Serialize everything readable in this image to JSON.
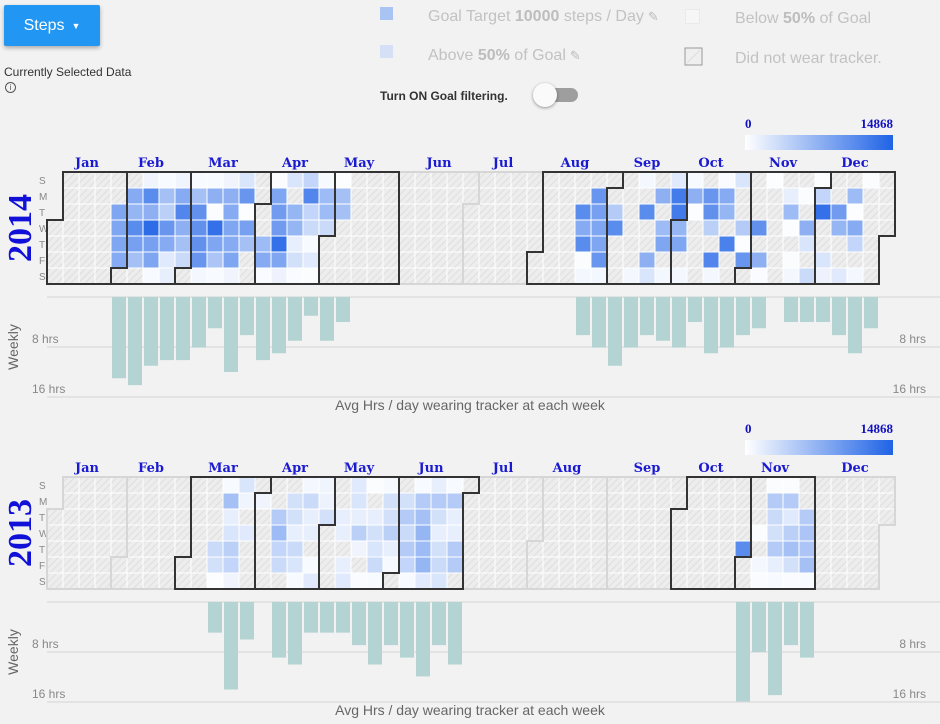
{
  "header": {
    "metric_button": "Steps",
    "selected_label": "Currently Selected Data",
    "legend": {
      "goal_prefix": "Goal Target ",
      "goal_value": "10000",
      "goal_suffix": " steps / Day",
      "above_prefix": "Above ",
      "above_value": "50%",
      "above_suffix": " of Goal",
      "below_prefix": "Below ",
      "below_value": "50%",
      "below_suffix": " of Goal",
      "not_worn": "Did not wear tracker."
    },
    "toggle_label": "Turn ON Goal filtering.",
    "toggle_on": false
  },
  "colors": {
    "goal": "#a9c4f2",
    "above": "#d5e0f7",
    "below": "#f7f7f7",
    "scale_low": "#ffffff",
    "scale_high": "#1f63e6",
    "bars": "#b3d4d2",
    "button": "#2196f3"
  },
  "months": [
    "Jan",
    "Feb",
    "Mar",
    "Apr",
    "May",
    "Jun",
    "Jul",
    "Aug",
    "Sep",
    "Oct",
    "Nov",
    "Dec"
  ],
  "days": [
    "S",
    "M",
    "T",
    "W",
    "T",
    "F",
    "S"
  ],
  "chart_data": [
    {
      "type": "heatmap",
      "year": "2014",
      "scale_min": "0",
      "scale_max": "14868",
      "weekly_label": "Weekly",
      "tick_labels": [
        "8 hrs",
        "16 hrs"
      ],
      "xlabel": "Avg Hrs / day wearing tracker at each week",
      "hours_ylim": [
        0,
        16
      ],
      "daily_steps_by_week": [
        {
          "week_start": "2014-01-26",
          "steps": [
            null,
            null,
            8500,
            8500,
            8500,
            8000,
            null
          ]
        },
        {
          "week_start": "2014-02-02",
          "steps": [
            null,
            8000,
            7000,
            11000,
            9000,
            6000,
            null
          ]
        },
        {
          "week_start": "2014-02-09",
          "steps": [
            1000,
            11000,
            7500,
            14000,
            9000,
            8500,
            500
          ]
        },
        {
          "week_start": "2014-02-16",
          "steps": [
            500,
            6000,
            4500,
            10000,
            8000,
            2000,
            1500
          ]
        },
        {
          "week_start": "2014-02-23",
          "steps": [
            1000,
            8000,
            11500,
            7500,
            6000,
            3500,
            null
          ]
        },
        {
          "week_start": "2014-03-02",
          "steps": [
            500,
            6000,
            10500,
            10500,
            10500,
            10000,
            800
          ]
        },
        {
          "week_start": "2014-03-09",
          "steps": [
            500,
            7500,
            300,
            13500,
            8500,
            5500,
            500
          ]
        },
        {
          "week_start": "2014-03-16",
          "steps": [
            1000,
            7500,
            8000,
            8500,
            8000,
            8500,
            1000
          ]
        },
        {
          "week_start": "2014-03-23",
          "steps": [
            2500,
            10000,
            200,
            9000,
            6000,
            null,
            null
          ]
        },
        {
          "week_start": "2014-03-30",
          "steps": [
            null,
            null,
            null,
            null,
            6500,
            8000,
            400
          ]
        },
        {
          "week_start": "2014-04-06",
          "steps": [
            300,
            8500,
            9500,
            9500,
            13500,
            8500,
            1200
          ]
        },
        {
          "week_start": "2014-04-13",
          "steps": [
            2500,
            null,
            7000,
            7000,
            1500,
            3000,
            400
          ]
        },
        {
          "week_start": "2014-04-20",
          "steps": [
            4000,
            11500,
            4000,
            3500,
            500,
            2000,
            300
          ]
        },
        {
          "week_start": "2014-04-27",
          "steps": [
            600,
            6500,
            6500,
            3500,
            null,
            null,
            null
          ]
        },
        {
          "week_start": "2014-05-04",
          "steps": [
            200,
            6000,
            6000,
            null,
            null,
            null,
            null
          ]
        },
        {
          "week_start": "2014-08-17",
          "steps": [
            null,
            null,
            11000,
            8000,
            11000,
            300,
            800
          ]
        },
        {
          "week_start": "2014-08-24",
          "steps": [
            null,
            10000,
            9000,
            8500,
            8500,
            10000,
            800
          ]
        },
        {
          "week_start": "2014-08-31",
          "steps": [
            null,
            null,
            5000,
            11000,
            null,
            null,
            null
          ]
        },
        {
          "week_start": "2014-09-07",
          "steps": [
            null,
            null,
            null,
            null,
            null,
            null,
            800
          ]
        },
        {
          "week_start": "2014-09-14",
          "steps": [
            800,
            null,
            11000,
            null,
            null,
            7500,
            2500
          ]
        },
        {
          "week_start": "2014-09-21",
          "steps": [
            null,
            7500,
            null,
            6500,
            8500,
            null,
            800
          ]
        },
        {
          "week_start": "2014-09-28",
          "steps": [
            2000,
            12500,
            12500,
            7000,
            8500,
            null,
            800
          ]
        },
        {
          "week_start": "2014-10-05",
          "steps": [
            500,
            7500,
            200,
            null,
            null,
            null,
            null
          ]
        },
        {
          "week_start": "2014-10-12",
          "steps": [
            null,
            10000,
            10500,
            4500,
            null,
            11500,
            800
          ]
        },
        {
          "week_start": "2014-10-19",
          "steps": [
            400,
            8000,
            7000,
            null,
            12000,
            null,
            null
          ]
        },
        {
          "week_start": "2014-10-26",
          "steps": [
            2500,
            null,
            null,
            5000,
            200,
            10000,
            null
          ]
        },
        {
          "week_start": "2014-11-02",
          "steps": [
            null,
            null,
            null,
            10500,
            null,
            7500,
            400
          ]
        },
        {
          "week_start": "2014-11-09",
          "steps": [
            200,
            null,
            null,
            null,
            null,
            null,
            null
          ]
        },
        {
          "week_start": "2014-11-16",
          "steps": [
            null,
            1500,
            6500,
            200,
            null,
            300,
            800
          ]
        },
        {
          "week_start": "2014-11-23",
          "steps": [
            null,
            300,
            null,
            7500,
            2500,
            null,
            3500
          ]
        },
        {
          "week_start": "2014-11-30",
          "steps": [
            200,
            4000,
            13500,
            null,
            null,
            2500,
            1200
          ]
        },
        {
          "week_start": "2014-12-07",
          "steps": [
            null,
            null,
            9500,
            7000,
            null,
            null,
            2000
          ]
        },
        {
          "week_start": "2014-12-14",
          "steps": [
            null,
            6500,
            200,
            8000,
            4000,
            null,
            800
          ]
        },
        {
          "week_start": "2014-12-21",
          "steps": [
            300,
            null,
            null,
            null,
            null,
            null,
            null
          ]
        }
      ],
      "weekly_avg_hours": [
        {
          "week_start": "2014-01-26",
          "hours": 13.0
        },
        {
          "week_start": "2014-02-02",
          "hours": 14.1
        },
        {
          "week_start": "2014-02-09",
          "hours": 11.0
        },
        {
          "week_start": "2014-02-16",
          "hours": 10.1
        },
        {
          "week_start": "2014-02-23",
          "hours": 10.1
        },
        {
          "week_start": "2014-03-02",
          "hours": 8.1
        },
        {
          "week_start": "2014-03-09",
          "hours": 5.0
        },
        {
          "week_start": "2014-03-16",
          "hours": 12.0
        },
        {
          "week_start": "2014-03-23",
          "hours": 6.1
        },
        {
          "week_start": "2014-03-30",
          "hours": 10.1
        },
        {
          "week_start": "2014-04-06",
          "hours": 9.0
        },
        {
          "week_start": "2014-04-13",
          "hours": 7.0
        },
        {
          "week_start": "2014-04-20",
          "hours": 3.0
        },
        {
          "week_start": "2014-04-27",
          "hours": 7.0
        },
        {
          "week_start": "2014-05-04",
          "hours": 4.0
        },
        {
          "week_start": "2014-08-17",
          "hours": 6.1
        },
        {
          "week_start": "2014-08-24",
          "hours": 8.1
        },
        {
          "week_start": "2014-08-31",
          "hours": 11.0
        },
        {
          "week_start": "2014-09-07",
          "hours": 8.1
        },
        {
          "week_start": "2014-09-14",
          "hours": 6.1
        },
        {
          "week_start": "2014-09-21",
          "hours": 7.0
        },
        {
          "week_start": "2014-09-28",
          "hours": 8.1
        },
        {
          "week_start": "2014-10-05",
          "hours": 4.0
        },
        {
          "week_start": "2014-10-12",
          "hours": 9.0
        },
        {
          "week_start": "2014-10-19",
          "hours": 8.1
        },
        {
          "week_start": "2014-10-26",
          "hours": 6.1
        },
        {
          "week_start": "2014-11-02",
          "hours": 5.0
        },
        {
          "week_start": "2014-11-16",
          "hours": 4.0
        },
        {
          "week_start": "2014-11-23",
          "hours": 4.0
        },
        {
          "week_start": "2014-11-30",
          "hours": 4.0
        },
        {
          "week_start": "2014-12-07",
          "hours": 6.1
        },
        {
          "week_start": "2014-12-14",
          "hours": 9.0
        },
        {
          "week_start": "2014-12-21",
          "hours": 5.0
        }
      ]
    },
    {
      "type": "heatmap",
      "year": "2013",
      "scale_min": "0",
      "scale_max": "14868",
      "weekly_label": "Weekly",
      "tick_labels": [
        "8 hrs",
        "16 hrs"
      ],
      "xlabel": "Avg Hrs / day wearing tracker at each week",
      "hours_ylim": [
        0,
        16
      ],
      "daily_steps_by_week": [
        {
          "week_start": "2013-03-10",
          "steps": [
            null,
            null,
            null,
            null,
            3500,
            3000,
            200
          ]
        },
        {
          "week_start": "2013-03-17",
          "steps": [
            500,
            6000,
            1500,
            2500,
            4500,
            4000,
            1000
          ]
        },
        {
          "week_start": "2013-03-24",
          "steps": [
            2500,
            1000,
            null,
            2000,
            null,
            null,
            null
          ]
        },
        {
          "week_start": "2013-03-31",
          "steps": [
            null,
            1000,
            null,
            null,
            null,
            null,
            null
          ]
        },
        {
          "week_start": "2013-04-07",
          "steps": [
            null,
            null,
            5000,
            6500,
            4000,
            3500,
            null
          ]
        },
        {
          "week_start": "2013-04-14",
          "steps": [
            null,
            3000,
            3000,
            1500,
            3500,
            2500,
            500
          ]
        },
        {
          "week_start": "2013-04-21",
          "steps": [
            800,
            3500,
            1500,
            1500,
            null,
            500,
            2000
          ]
        },
        {
          "week_start": "2013-04-28",
          "steps": [
            1000,
            1200,
            3000,
            null,
            null,
            null,
            null
          ]
        },
        {
          "week_start": "2013-05-05",
          "steps": [
            null,
            null,
            1500,
            1500,
            null,
            1500,
            2000
          ]
        },
        {
          "week_start": "2013-05-12",
          "steps": [
            2000,
            2500,
            1500,
            4500,
            1000,
            null,
            400
          ]
        },
        {
          "week_start": "2013-05-19",
          "steps": [
            300,
            null,
            1500,
            3000,
            2500,
            3500,
            500
          ]
        },
        {
          "week_start": "2013-05-26",
          "steps": [
            600,
            3000,
            3000,
            4500,
            1500,
            600,
            null
          ]
        },
        {
          "week_start": "2013-06-02",
          "steps": [
            null,
            3000,
            5000,
            3500,
            5000,
            4000,
            500
          ]
        },
        {
          "week_start": "2013-06-09",
          "steps": [
            500,
            5000,
            6000,
            7000,
            6500,
            7000,
            2000
          ]
        },
        {
          "week_start": "2013-06-16",
          "steps": [
            1500,
            5000,
            3000,
            1500,
            3000,
            3500,
            2500
          ]
        },
        {
          "week_start": "2013-06-23",
          "steps": [
            500,
            5000,
            1500,
            1500,
            5000,
            5000,
            null
          ]
        },
        {
          "week_start": "2013-10-27",
          "steps": [
            null,
            null,
            null,
            null,
            11000,
            null,
            null
          ]
        },
        {
          "week_start": "2013-11-03",
          "steps": [
            null,
            null,
            null,
            300,
            null,
            800,
            400
          ]
        },
        {
          "week_start": "2013-11-10",
          "steps": [
            300,
            5000,
            3500,
            3000,
            5000,
            1500,
            500
          ]
        },
        {
          "week_start": "2013-11-17",
          "steps": [
            300,
            5000,
            2000,
            4500,
            6000,
            3000,
            400
          ]
        },
        {
          "week_start": "2013-11-24",
          "steps": [
            null,
            null,
            5000,
            5500,
            5500,
            6000,
            500
          ]
        }
      ],
      "weekly_avg_hours": [
        {
          "week_start": "2013-03-10",
          "hours": 4.9
        },
        {
          "week_start": "2013-03-17",
          "hours": 14.0
        },
        {
          "week_start": "2013-03-24",
          "hours": 6.0
        },
        {
          "week_start": "2013-04-07",
          "hours": 8.9
        },
        {
          "week_start": "2013-04-14",
          "hours": 10.0
        },
        {
          "week_start": "2013-04-21",
          "hours": 4.9
        },
        {
          "week_start": "2013-04-28",
          "hours": 4.9
        },
        {
          "week_start": "2013-05-05",
          "hours": 4.9
        },
        {
          "week_start": "2013-05-12",
          "hours": 6.9
        },
        {
          "week_start": "2013-05-19",
          "hours": 10.0
        },
        {
          "week_start": "2013-05-26",
          "hours": 6.9
        },
        {
          "week_start": "2013-06-02",
          "hours": 8.9
        },
        {
          "week_start": "2013-06-09",
          "hours": 11.9
        },
        {
          "week_start": "2013-06-16",
          "hours": 6.9
        },
        {
          "week_start": "2013-06-23",
          "hours": 10.0
        },
        {
          "week_start": "2013-10-27",
          "hours": 15.9
        },
        {
          "week_start": "2013-11-03",
          "hours": 8.0
        },
        {
          "week_start": "2013-11-10",
          "hours": 14.9
        },
        {
          "week_start": "2013-11-17",
          "hours": 6.9
        },
        {
          "week_start": "2013-11-24",
          "hours": 8.9
        }
      ]
    }
  ]
}
